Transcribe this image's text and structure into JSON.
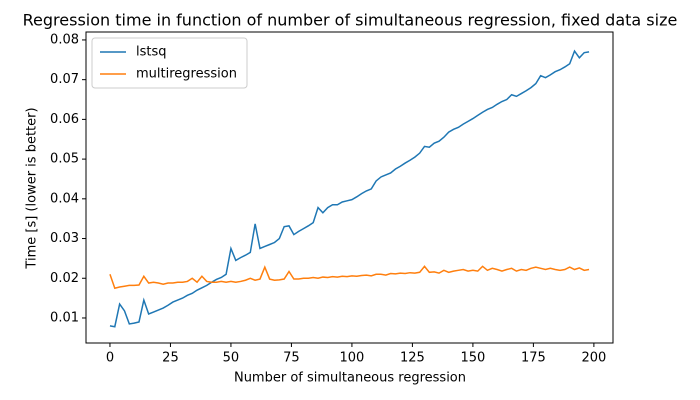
{
  "chart_data": {
    "type": "line",
    "title": "Regression time in function of number of simultaneous regression, fixed data size",
    "x_label": "Number of simultaneous regression",
    "y_label": "Time [s] (lower is better)",
    "legend": "upper left",
    "x": [
      0,
      2,
      4,
      6,
      8,
      10,
      12,
      14,
      16,
      18,
      20,
      22,
      24,
      26,
      28,
      30,
      32,
      34,
      36,
      38,
      40,
      42,
      44,
      46,
      48,
      50,
      52,
      54,
      56,
      58,
      60,
      62,
      64,
      66,
      68,
      70,
      72,
      74,
      76,
      78,
      80,
      82,
      84,
      86,
      88,
      90,
      92,
      94,
      96,
      98,
      100,
      102,
      104,
      106,
      108,
      110,
      112,
      114,
      116,
      118,
      120,
      122,
      124,
      126,
      128,
      130,
      132,
      134,
      136,
      138,
      140,
      142,
      144,
      146,
      148,
      150,
      152,
      154,
      156,
      158,
      160,
      162,
      164,
      166,
      168,
      170,
      172,
      174,
      176,
      178,
      180,
      182,
      184,
      186,
      188,
      190,
      192,
      194,
      196,
      198
    ],
    "series": [
      {
        "name": "lstsq",
        "color": "#1f77b4",
        "values": [
          0.008,
          0.0078,
          0.0135,
          0.0118,
          0.0085,
          0.0087,
          0.009,
          0.0145,
          0.011,
          0.0115,
          0.012,
          0.0125,
          0.0132,
          0.014,
          0.0145,
          0.015,
          0.0157,
          0.0162,
          0.017,
          0.0176,
          0.0182,
          0.019,
          0.0197,
          0.0202,
          0.021,
          0.0275,
          0.0245,
          0.0252,
          0.0258,
          0.0265,
          0.0337,
          0.0275,
          0.028,
          0.0285,
          0.029,
          0.03,
          0.033,
          0.0332,
          0.031,
          0.0318,
          0.0325,
          0.0332,
          0.034,
          0.0378,
          0.0365,
          0.0378,
          0.0385,
          0.0385,
          0.0392,
          0.0395,
          0.0398,
          0.0405,
          0.0413,
          0.042,
          0.0425,
          0.0445,
          0.0455,
          0.046,
          0.0465,
          0.0475,
          0.0482,
          0.049,
          0.0497,
          0.0505,
          0.0515,
          0.0532,
          0.053,
          0.054,
          0.0545,
          0.0555,
          0.0568,
          0.0575,
          0.058,
          0.0588,
          0.0595,
          0.0602,
          0.061,
          0.0618,
          0.0625,
          0.063,
          0.0638,
          0.0645,
          0.065,
          0.0662,
          0.0658,
          0.0665,
          0.0672,
          0.068,
          0.069,
          0.071,
          0.0705,
          0.0712,
          0.072,
          0.0725,
          0.0732,
          0.074,
          0.0772,
          0.0755,
          0.0768,
          0.077
        ]
      },
      {
        "name": "multiregression",
        "color": "#ff7f0e",
        "values": [
          0.021,
          0.0175,
          0.0178,
          0.018,
          0.0182,
          0.0182,
          0.0183,
          0.0205,
          0.0188,
          0.019,
          0.0188,
          0.0185,
          0.0188,
          0.0188,
          0.019,
          0.019,
          0.0192,
          0.02,
          0.019,
          0.0205,
          0.0192,
          0.019,
          0.019,
          0.0192,
          0.019,
          0.0192,
          0.019,
          0.0192,
          0.0195,
          0.02,
          0.0195,
          0.0198,
          0.0228,
          0.0198,
          0.0195,
          0.0196,
          0.0198,
          0.0217,
          0.0198,
          0.0198,
          0.02,
          0.02,
          0.0202,
          0.02,
          0.0203,
          0.0202,
          0.0204,
          0.0203,
          0.0205,
          0.0204,
          0.0206,
          0.0205,
          0.0207,
          0.0208,
          0.0206,
          0.021,
          0.021,
          0.0208,
          0.0212,
          0.0211,
          0.0213,
          0.0212,
          0.0214,
          0.0213,
          0.0215,
          0.023,
          0.0215,
          0.0216,
          0.0213,
          0.022,
          0.0215,
          0.0218,
          0.022,
          0.0222,
          0.0218,
          0.022,
          0.0218,
          0.023,
          0.022,
          0.0225,
          0.0222,
          0.0218,
          0.0222,
          0.0225,
          0.0218,
          0.0222,
          0.022,
          0.0225,
          0.0228,
          0.0225,
          0.0222,
          0.0225,
          0.0222,
          0.022,
          0.0222,
          0.0228,
          0.0222,
          0.0226,
          0.022,
          0.0222
        ]
      }
    ],
    "xlim": [
      -9.9,
      207.9
    ],
    "xticks": [
      0,
      25,
      50,
      75,
      100,
      125,
      150,
      175,
      200
    ],
    "ylim": [
      0.0037,
      0.082
    ],
    "yticks": [
      0.01,
      0.02,
      0.03,
      0.04,
      0.05,
      0.06,
      0.07,
      0.08
    ]
  }
}
